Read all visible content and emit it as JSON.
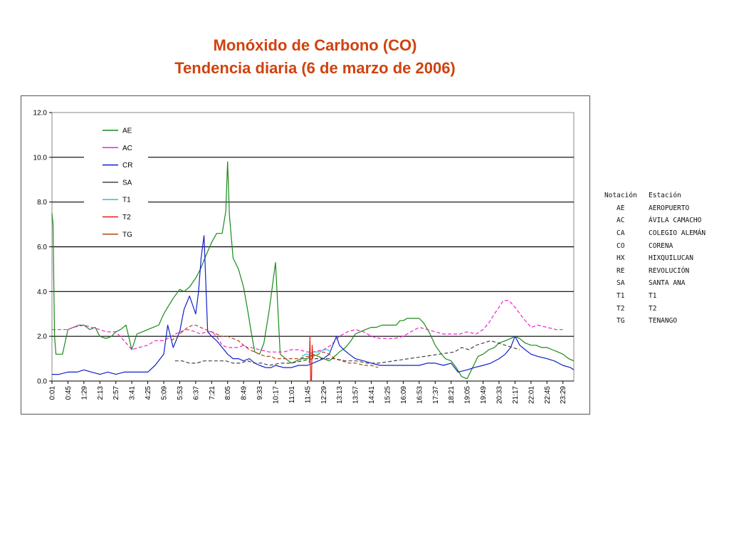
{
  "title": {
    "line1": "Monóxido de Carbono (CO)",
    "line2": "Tendencia diaria (6 de marzo de 2006)"
  },
  "chart_data": {
    "type": "line",
    "title": "Monóxido de Carbono (CO) Tendencia diaria (6 de marzo de 2006)",
    "xlabel": "",
    "ylabel": "",
    "ylim": [
      0,
      12
    ],
    "yticks": [
      "0.0",
      "2.0",
      "4.0",
      "6.0",
      "8.0",
      "10.0",
      "12.0"
    ],
    "grid": "horizontal",
    "legend_position": "top-left",
    "x_range_minutes": [
      1,
      1439
    ],
    "xticks": [
      "0:01",
      "0:45",
      "1:29",
      "2:13",
      "2:57",
      "3:41",
      "4:25",
      "5:09",
      "5:53",
      "6:37",
      "7:21",
      "8:05",
      "8:49",
      "9:33",
      "10:17",
      "11:01",
      "11:45",
      "12:29",
      "13:13",
      "13:57",
      "14:41",
      "15:25",
      "16:09",
      "16:53",
      "17:37",
      "18:21",
      "19:05",
      "19:49",
      "20:33",
      "21:17",
      "22:01",
      "22:45",
      "23:29"
    ],
    "series": [
      {
        "name": "AE",
        "color": "#1a8a1a",
        "style": "solid",
        "x": [
          "0:01",
          "0:04",
          "0:08",
          "0:12",
          "0:20",
          "0:30",
          "0:45",
          "1:00",
          "1:15",
          "1:29",
          "1:45",
          "2:00",
          "2:13",
          "2:30",
          "2:45",
          "2:57",
          "3:10",
          "3:25",
          "3:41",
          "3:55",
          "4:10",
          "4:25",
          "4:40",
          "4:55",
          "5:09",
          "5:20",
          "5:35",
          "5:53",
          "6:05",
          "6:20",
          "6:37",
          "6:50",
          "7:05",
          "7:21",
          "7:35",
          "7:50",
          "8:00",
          "8:05",
          "8:10",
          "8:20",
          "8:35",
          "8:49",
          "9:00",
          "9:10",
          "9:20",
          "9:33",
          "9:45",
          "10:00",
          "10:17",
          "10:30",
          "10:45",
          "11:01",
          "11:15",
          "11:30",
          "11:45",
          "12:00",
          "12:15",
          "12:29",
          "12:45",
          "13:00",
          "13:13",
          "13:30",
          "13:45",
          "13:57",
          "14:10",
          "14:25",
          "14:41",
          "14:55",
          "15:10",
          "15:25",
          "15:40",
          "15:50",
          "15:55",
          "16:00",
          "16:09",
          "16:20",
          "16:35",
          "16:53",
          "17:05",
          "17:20",
          "17:37",
          "17:50",
          "18:05",
          "18:21",
          "18:35",
          "18:50",
          "19:05",
          "19:20",
          "19:35",
          "19:49",
          "20:05",
          "20:20",
          "20:33",
          "20:50",
          "21:05",
          "21:17",
          "21:30",
          "21:45",
          "22:01",
          "22:15",
          "22:30",
          "22:45",
          "23:00",
          "23:15",
          "23:29",
          "23:45",
          "23:59"
        ],
        "y": [
          7.5,
          7.0,
          2.0,
          1.2,
          1.2,
          1.2,
          2.3,
          2.4,
          2.5,
          2.5,
          2.3,
          2.4,
          2.0,
          1.9,
          2.0,
          2.2,
          2.3,
          2.5,
          1.4,
          2.1,
          2.2,
          2.3,
          2.4,
          2.5,
          3.0,
          3.3,
          3.7,
          4.1,
          4.0,
          4.2,
          4.6,
          5.0,
          5.6,
          6.2,
          6.6,
          6.6,
          7.6,
          9.8,
          7.4,
          5.5,
          5.0,
          4.2,
          3.2,
          2.2,
          1.3,
          1.2,
          1.7,
          3.2,
          5.3,
          1.2,
          1.0,
          0.8,
          0.9,
          1.0,
          1.0,
          1.2,
          1.1,
          1.0,
          0.9,
          1.1,
          1.3,
          1.5,
          1.8,
          2.1,
          2.2,
          2.3,
          2.4,
          2.4,
          2.5,
          2.5,
          2.5,
          2.5,
          2.6,
          2.7,
          2.7,
          2.8,
          2.8,
          2.8,
          2.6,
          2.2,
          1.6,
          1.3,
          1.0,
          0.9,
          0.6,
          0.2,
          0.1,
          0.6,
          1.1,
          1.2,
          1.4,
          1.5,
          1.7,
          1.8,
          1.9,
          2.0,
          1.9,
          1.7,
          1.6,
          1.6,
          1.5,
          1.5,
          1.4,
          1.3,
          1.2,
          1.0,
          0.9
        ]
      },
      {
        "name": "AC",
        "color": "#ee22cc",
        "style": "dashed",
        "x": [
          "0:01",
          "0:20",
          "0:45",
          "1:00",
          "1:29",
          "1:50",
          "2:13",
          "2:30",
          "2:57",
          "3:20",
          "3:41",
          "4:00",
          "4:25",
          "4:45",
          "5:09",
          "5:30",
          "5:53",
          "6:15",
          "6:37",
          "6:50",
          "7:05",
          "7:21",
          "7:35",
          "7:50",
          "8:05",
          "8:20",
          "8:35",
          "8:49",
          "9:00",
          "9:10",
          "9:33",
          "10:00",
          "10:17",
          "10:40",
          "11:01",
          "11:20",
          "11:45",
          "12:00",
          "12:29",
          "12:50",
          "13:13",
          "13:35",
          "13:57",
          "14:20",
          "14:41",
          "15:05",
          "15:25",
          "15:45",
          "16:09",
          "16:30",
          "16:53",
          "17:15",
          "17:37",
          "18:00",
          "18:21",
          "18:45",
          "19:05",
          "19:30",
          "19:49",
          "20:05",
          "20:20",
          "20:33",
          "20:45",
          "21:00",
          "21:17",
          "21:40",
          "22:01",
          "22:20",
          "22:45",
          "23:10",
          "23:29"
        ],
        "y": [
          2.3,
          2.3,
          2.3,
          2.4,
          2.5,
          2.4,
          2.3,
          2.2,
          2.2,
          1.8,
          1.4,
          1.5,
          1.6,
          1.8,
          1.8,
          2.0,
          2.2,
          2.3,
          2.2,
          2.1,
          2.2,
          2.2,
          2.0,
          1.6,
          1.5,
          1.5,
          1.5,
          1.6,
          1.5,
          1.5,
          1.4,
          1.3,
          1.3,
          1.3,
          1.4,
          1.4,
          1.3,
          1.3,
          1.4,
          1.6,
          2.0,
          2.2,
          2.3,
          2.2,
          2.0,
          1.9,
          1.9,
          1.9,
          2.0,
          2.2,
          2.4,
          2.3,
          2.2,
          2.1,
          2.1,
          2.1,
          2.2,
          2.1,
          2.3,
          2.6,
          3.0,
          3.3,
          3.6,
          3.6,
          3.3,
          2.8,
          2.4,
          2.5,
          2.4,
          2.3,
          2.3
        ]
      },
      {
        "name": "CR",
        "color": "#1020c8",
        "style": "solid",
        "x": [
          "0:01",
          "0:20",
          "0:45",
          "1:10",
          "1:29",
          "1:50",
          "2:13",
          "2:35",
          "2:57",
          "3:20",
          "3:41",
          "4:00",
          "4:25",
          "4:45",
          "5:09",
          "5:20",
          "5:35",
          "5:53",
          "6:05",
          "6:20",
          "6:37",
          "6:45",
          "6:52",
          "7:00",
          "7:10",
          "7:21",
          "7:35",
          "7:50",
          "8:05",
          "8:20",
          "8:35",
          "8:49",
          "9:05",
          "9:20",
          "9:33",
          "9:50",
          "10:05",
          "10:17",
          "10:40",
          "11:01",
          "11:20",
          "11:45",
          "12:00",
          "12:15",
          "12:29",
          "12:45",
          "12:55",
          "13:05",
          "13:13",
          "13:25",
          "13:40",
          "13:57",
          "14:20",
          "14:41",
          "15:05",
          "15:25",
          "15:45",
          "16:09",
          "16:30",
          "16:53",
          "17:15",
          "17:37",
          "18:00",
          "18:21",
          "18:40",
          "19:05",
          "19:25",
          "19:49",
          "20:10",
          "20:33",
          "20:50",
          "21:05",
          "21:17",
          "21:30",
          "21:45",
          "22:01",
          "22:20",
          "22:45",
          "23:05",
          "23:29",
          "23:50",
          "23:59"
        ],
        "y": [
          0.3,
          0.3,
          0.4,
          0.4,
          0.5,
          0.4,
          0.3,
          0.4,
          0.3,
          0.4,
          0.4,
          0.4,
          0.4,
          0.7,
          1.2,
          2.5,
          1.5,
          2.2,
          3.2,
          3.8,
          3.0,
          4.0,
          5.5,
          6.5,
          2.2,
          2.0,
          1.8,
          1.5,
          1.2,
          1.0,
          1.0,
          0.9,
          1.0,
          0.8,
          0.7,
          0.6,
          0.6,
          0.7,
          0.6,
          0.6,
          0.7,
          0.7,
          0.8,
          0.9,
          1.0,
          1.2,
          1.6,
          2.0,
          1.6,
          1.4,
          1.2,
          1.0,
          0.9,
          0.8,
          0.7,
          0.7,
          0.7,
          0.7,
          0.7,
          0.7,
          0.8,
          0.8,
          0.7,
          0.8,
          0.4,
          0.5,
          0.6,
          0.7,
          0.8,
          1.0,
          1.2,
          1.5,
          2.0,
          1.6,
          1.4,
          1.2,
          1.1,
          1.0,
          0.9,
          0.7,
          0.6,
          0.5
        ]
      },
      {
        "name": "SA",
        "color": "#444444",
        "style": "dashed",
        "x": [
          "5:40",
          "6:00",
          "6:20",
          "6:40",
          "7:00",
          "7:20",
          "7:40",
          "8:00",
          "8:20",
          "8:40",
          "9:00",
          "9:20",
          "9:40",
          "10:00",
          "10:30",
          "11:00",
          "11:30",
          "12:00",
          "12:30",
          "13:00",
          "13:30",
          "14:00",
          "14:30",
          "15:00",
          "18:30",
          "18:50",
          "19:10",
          "19:30",
          "19:50",
          "20:10",
          "20:30",
          "20:50",
          "21:10",
          "21:30"
        ],
        "y": [
          0.9,
          0.9,
          0.8,
          0.8,
          0.9,
          0.9,
          0.9,
          0.9,
          0.8,
          0.8,
          0.9,
          0.8,
          0.8,
          0.7,
          0.8,
          0.8,
          0.9,
          1.0,
          1.0,
          1.0,
          0.9,
          0.9,
          0.8,
          0.8,
          1.3,
          1.5,
          1.4,
          1.6,
          1.7,
          1.8,
          1.7,
          1.6,
          1.5,
          1.4
        ]
      },
      {
        "name": "T1",
        "color": "#22c4d4",
        "style": "solid",
        "x": [
          "11:30",
          "11:40",
          "11:50",
          "12:00",
          "12:10",
          "12:20",
          "12:29",
          "12:40",
          "12:50"
        ],
        "y": [
          1.1,
          1.2,
          1.2,
          1.3,
          1.3,
          1.3,
          1.4,
          1.4,
          1.3
        ]
      },
      {
        "name": "T2",
        "color": "#e02010",
        "style": "solid",
        "x": [
          "11:50",
          "11:52",
          "11:54",
          "11:56",
          "11:58",
          "12:00"
        ],
        "y": [
          0.8,
          2.0,
          0.0,
          0.0,
          1.6,
          1.0
        ]
      },
      {
        "name": "TG",
        "color": "#b0441a",
        "style": "dashed",
        "x": [
          "5:30",
          "5:45",
          "6:00",
          "6:15",
          "6:30",
          "6:37",
          "6:50",
          "7:05",
          "7:21",
          "7:35",
          "7:50",
          "8:05",
          "8:20",
          "8:35",
          "8:49",
          "9:05",
          "9:20",
          "9:33",
          "9:50",
          "10:05",
          "10:17",
          "10:40",
          "11:01",
          "11:20",
          "11:45",
          "12:00",
          "12:15",
          "12:29",
          "12:45",
          "13:00",
          "13:20",
          "13:40",
          "14:00",
          "14:20",
          "14:41",
          "15:00"
        ],
        "y": [
          1.8,
          2.0,
          2.2,
          2.4,
          2.5,
          2.5,
          2.4,
          2.3,
          2.2,
          2.1,
          2.0,
          2.0,
          1.9,
          1.8,
          1.6,
          1.4,
          1.3,
          1.2,
          1.1,
          1.1,
          1.0,
          1.0,
          1.0,
          1.0,
          1.1,
          1.1,
          1.2,
          1.3,
          1.2,
          1.0,
          0.9,
          0.8,
          0.8,
          0.7,
          0.7,
          0.6
        ]
      }
    ]
  },
  "reference_table": {
    "header": {
      "code": "Notación",
      "name": "Estación"
    },
    "rows": [
      {
        "code": "AE",
        "name": "AEROPUERTO"
      },
      {
        "code": "AC",
        "name": "ÁVILA CAMACHO"
      },
      {
        "code": "CA",
        "name": "COLEGIO ALEMÁN"
      },
      {
        "code": "CO",
        "name": "CORENA"
      },
      {
        "code": "HX",
        "name": "HIXQUILUCAN"
      },
      {
        "code": "RE",
        "name": "REVOLUCIÓN"
      },
      {
        "code": "SA",
        "name": "SANTA ANA"
      },
      {
        "code": "T1",
        "name": "T1"
      },
      {
        "code": "T2",
        "name": "T2"
      },
      {
        "code": "TG",
        "name": "TENANGO"
      }
    ]
  }
}
